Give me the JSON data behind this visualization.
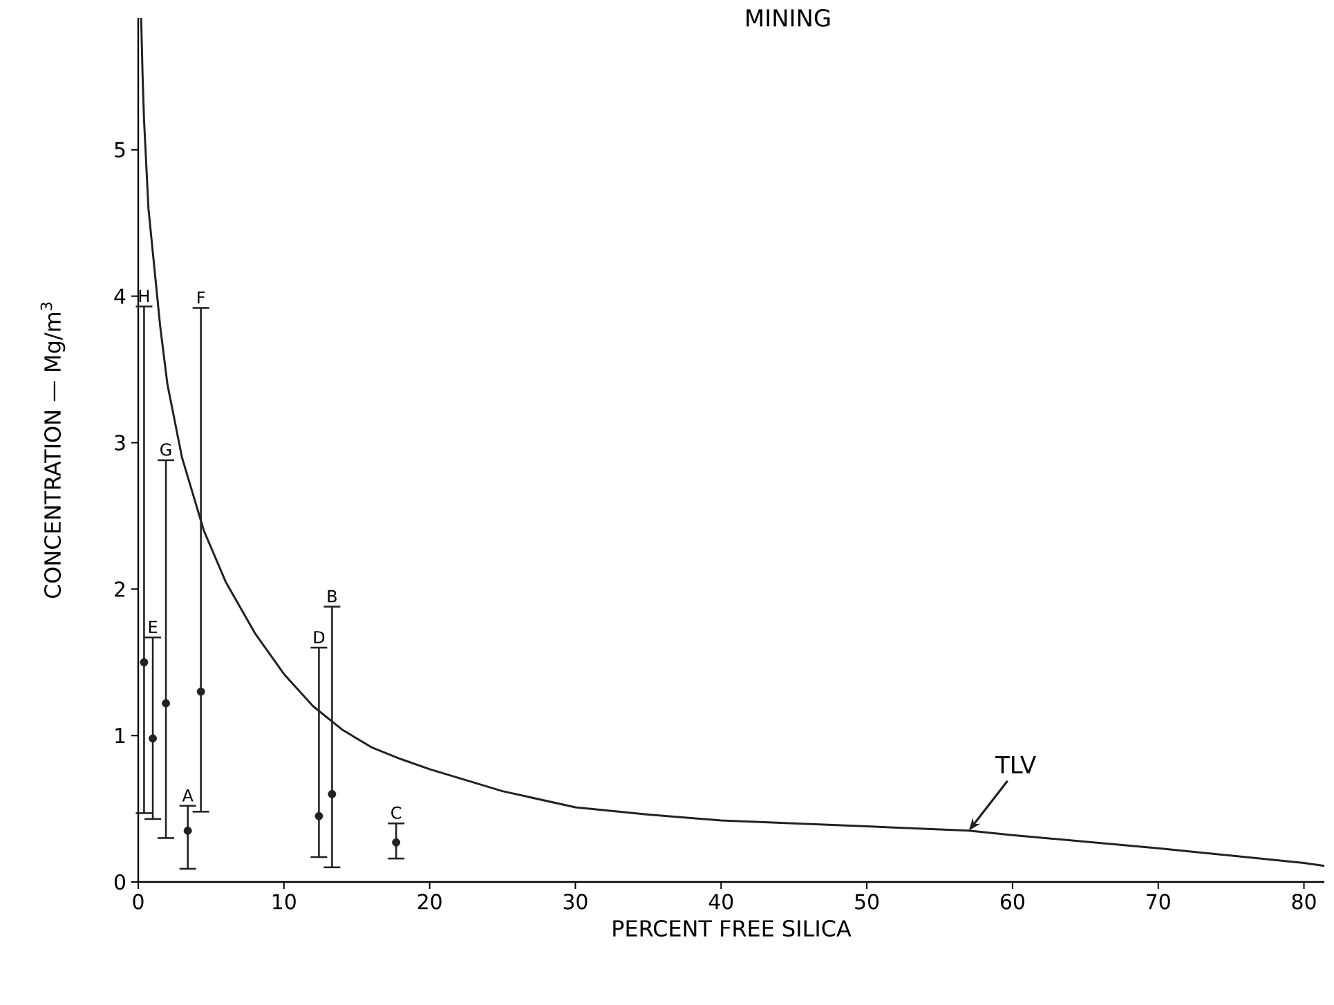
{
  "chart_data": {
    "type": "scatter",
    "title": "MINING",
    "xlabel": "PERCENT FREE SILICA",
    "ylabel": "CONCENTRATION — Mg/m$^{3}$",
    "xlim": [
      0,
      81.4
    ],
    "ylim": [
      0,
      5.9
    ],
    "xticks": [
      0,
      10,
      20,
      30,
      40,
      50,
      60,
      70,
      80
    ],
    "yticks": [
      0,
      1,
      2,
      3,
      4,
      5
    ],
    "series": [
      {
        "color": "#222222",
        "marker": "circle",
        "x": [
          0.4,
          1.0,
          1.9,
          3.4,
          4.3,
          12.4,
          13.3,
          17.7
        ],
        "values": [
          1.5,
          0.98,
          1.22,
          0.35,
          1.3,
          0.45,
          0.6,
          0.27
        ],
        "errors": [
          [
            0.47,
            3.93
          ],
          [
            0.43,
            1.67
          ],
          [
            0.3,
            2.88
          ],
          [
            0.09,
            0.52
          ],
          [
            0.48,
            3.92
          ],
          [
            0.17,
            1.6
          ],
          [
            0.1,
            1.88
          ],
          [
            0.16,
            0.4
          ]
        ]
      },
      {
        "type": "line",
        "name": "TLV",
        "color": "#222222",
        "marker": "none",
        "line_style": "solid",
        "x": [
          0.2,
          0.3,
          0.4,
          0.7,
          1.0,
          1.5,
          2,
          3,
          4.5,
          6,
          8,
          10,
          12,
          14,
          16,
          18,
          20,
          25,
          30,
          35,
          40,
          50,
          57,
          60,
          70,
          80,
          81.4
        ],
        "values": [
          5.9,
          5.5,
          5.2,
          4.6,
          4.3,
          3.8,
          3.4,
          2.9,
          2.4,
          2.05,
          1.7,
          1.42,
          1.2,
          1.04,
          0.92,
          0.84,
          0.77,
          0.62,
          0.51,
          0.46,
          0.42,
          0.38,
          0.35,
          0.32,
          0.23,
          0.13,
          0.11
        ]
      }
    ],
    "annotations": [
      {
        "text": "H",
        "x": 0.4,
        "y": 3.93
      },
      {
        "text": "E",
        "x": 1.0,
        "y": 1.67
      },
      {
        "text": "G",
        "x": 1.9,
        "y": 2.88
      },
      {
        "text": "A",
        "x": 3.4,
        "y": 0.52
      },
      {
        "text": "F",
        "x": 4.3,
        "y": 3.92
      },
      {
        "text": "D",
        "x": 12.4,
        "y": 1.6
      },
      {
        "text": "B",
        "x": 13.3,
        "y": 1.88
      },
      {
        "text": "C",
        "x": 17.7,
        "y": 0.4
      }
    ]
  }
}
